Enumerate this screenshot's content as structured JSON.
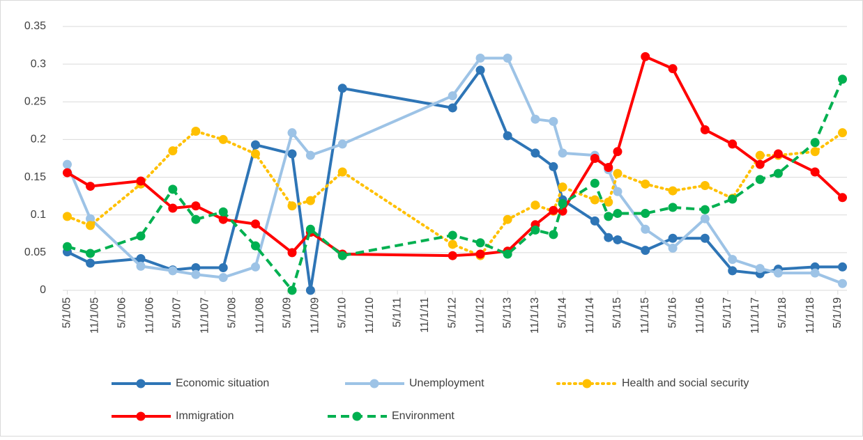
{
  "chart_data": {
    "type": "line",
    "x": [
      "5/1/05",
      "10/1/05",
      "9/1/06",
      "4/1/07",
      "9/1/07",
      "3/1/08",
      "10/1/08",
      "6/1/09",
      "10/1/09",
      "5/1/10",
      "5/1/12",
      "11/1/12",
      "5/1/13",
      "11/1/13",
      "3/1/14",
      "5/1/14",
      "12/1/14",
      "3/1/15",
      "5/1/15",
      "11/1/15",
      "5/1/16",
      "12/1/16",
      "6/1/17",
      "12/1/17",
      "4/1/18",
      "12/1/18",
      "6/1/19"
    ],
    "series": [
      {
        "name": "Economic situation",
        "color": "#2e75b6",
        "dash": "solid",
        "values": [
          0.051,
          0.036,
          0.042,
          0.027,
          0.03,
          0.03,
          0.193,
          0.181,
          0,
          0.268,
          0.242,
          0.292,
          0.205,
          0.182,
          0.164,
          0.12,
          0.092,
          0.07,
          0.067,
          0.053,
          0.069,
          0.069,
          0.026,
          0.022,
          0.028,
          0.031,
          0.031
        ]
      },
      {
        "name": "Unemployment",
        "color": "#9dc3e6",
        "dash": "solid",
        "values": [
          0.167,
          0.095,
          0.032,
          0.026,
          0.021,
          0.017,
          0.031,
          0.209,
          0.179,
          0.194,
          0.258,
          0.308,
          0.308,
          0.227,
          0.224,
          0.182,
          0.179,
          0.16,
          0.131,
          0.081,
          0.056,
          0.095,
          0.041,
          0.029,
          0.023,
          0.023,
          0.009
        ]
      },
      {
        "name": "Health and social security",
        "color": "#ffc000",
        "dash": "dotted",
        "values": [
          0.098,
          0.086,
          0.141,
          0.185,
          0.211,
          0.2,
          0.181,
          0.112,
          0.119,
          0.157,
          0.061,
          0.046,
          0.094,
          0.113,
          0.105,
          0.137,
          0.12,
          0.117,
          0.155,
          0.141,
          0.132,
          0.139,
          0.122,
          0.179,
          0.179,
          0.184,
          0.209
        ]
      },
      {
        "name": "Immigration",
        "color": "#ff0000",
        "dash": "solid",
        "values": [
          0.156,
          0.138,
          0.145,
          0.109,
          0.112,
          0.094,
          0.088,
          0.05,
          0.077,
          0.048,
          0.046,
          0.048,
          0.052,
          0.087,
          0.106,
          0.105,
          0.175,
          0.163,
          0.184,
          0.31,
          0.294,
          0.213,
          0.194,
          0.167,
          0.181,
          0.157,
          0.123
        ]
      },
      {
        "name": "Environment",
        "color": "#00b050",
        "dash": "dashed",
        "values": [
          0.058,
          0.049,
          0.072,
          0.134,
          0.094,
          0.104,
          0.059,
          0,
          0.081,
          0.046,
          0.073,
          0.063,
          0.048,
          0.08,
          0.074,
          0.115,
          0.142,
          0.098,
          0.102,
          0.102,
          0.11,
          0.107,
          0.121,
          0.147,
          0.155,
          0.196,
          0.28
        ]
      }
    ],
    "xlim": [
      "4/1/05",
      "7/1/19"
    ],
    "xticks": [
      "5/1/05",
      "11/1/05",
      "5/1/06",
      "11/1/06",
      "5/1/07",
      "11/1/07",
      "5/1/08",
      "11/1/08",
      "5/1/09",
      "11/1/09",
      "5/1/10",
      "11/1/10",
      "5/1/11",
      "11/1/11",
      "5/1/12",
      "11/1/12",
      "5/1/13",
      "11/1/13",
      "5/1/14",
      "11/1/14",
      "5/1/15",
      "11/1/15",
      "5/1/16",
      "11/1/16",
      "5/1/17",
      "11/1/17",
      "5/1/18",
      "11/1/18",
      "5/1/19"
    ],
    "ylim": [
      0,
      0.35
    ],
    "yticks": [
      0,
      0.05,
      0.1,
      0.15,
      0.2,
      0.25,
      0.3,
      0.35
    ],
    "grid": true,
    "legend": "bottom"
  }
}
